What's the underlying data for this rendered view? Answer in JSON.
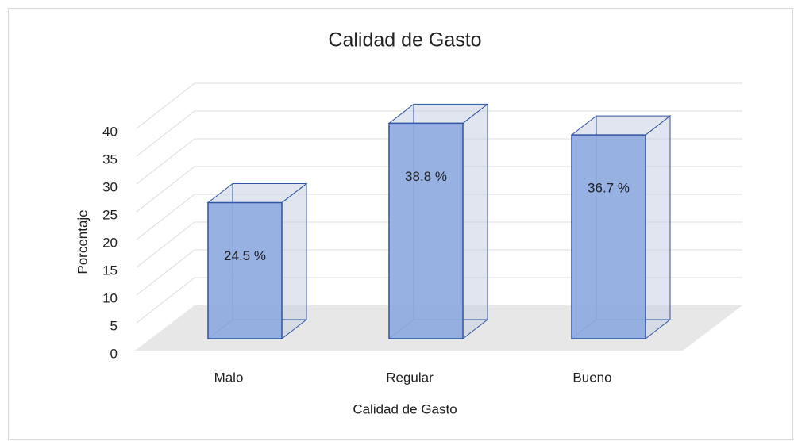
{
  "chart_data": {
    "type": "bar3d",
    "title": "Calidad de Gasto",
    "categories": [
      "Malo",
      "Regular",
      "Bueno"
    ],
    "values": [
      24.5,
      38.8,
      36.7
    ],
    "value_labels": [
      "24.5 %",
      "38.8 %",
      "36.7 %"
    ],
    "color": "#8eaadf",
    "xlabel": "Calidad de Gasto",
    "ylabel": "Porcentaje",
    "ylim": [
      0,
      40
    ],
    "yticks": [
      0,
      5,
      10,
      15,
      20,
      25,
      30,
      35,
      40
    ],
    "grid": true
  }
}
